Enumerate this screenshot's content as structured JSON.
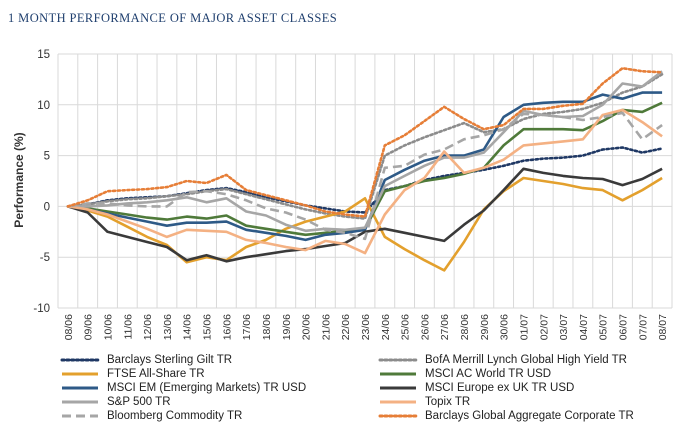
{
  "chart_data": {
    "type": "line",
    "title": "1 MONTH PERFORMANCE OF MAJOR ASSET CLASSES",
    "ylabel": "Performance (%)",
    "xlabel": "",
    "ylim": [
      -10,
      15
    ],
    "yticks": [
      -10,
      -5,
      0,
      5,
      10,
      15
    ],
    "grid": true,
    "legend_position": "bottom",
    "categories": [
      "08/06",
      "09/06",
      "10/06",
      "11/06",
      "12/06",
      "13/06",
      "14/06",
      "15/06",
      "16/06",
      "17/06",
      "18/06",
      "19/06",
      "20/06",
      "21/06",
      "22/06",
      "23/06",
      "24/06",
      "25/06",
      "26/06",
      "27/06",
      "28/06",
      "29/06",
      "30/06",
      "01/07",
      "02/07",
      "03/07",
      "04/07",
      "05/07",
      "06/07",
      "07/07",
      "08/07"
    ],
    "series": [
      {
        "name": "Barclays Sterling Gilt TR",
        "color": "#1f3864",
        "style": "dotted",
        "values": [
          0,
          0.2,
          0.6,
          0.8,
          0.9,
          1.0,
          1.3,
          1.6,
          1.8,
          1.4,
          0.9,
          0.5,
          0.1,
          -0.2,
          -0.5,
          -0.6,
          1.6,
          2.0,
          2.6,
          3.0,
          3.3,
          3.6,
          4.0,
          4.5,
          4.7,
          4.8,
          5.0,
          5.6,
          5.8,
          5.3,
          5.7
        ]
      },
      {
        "name": "BofA Merrill Lynch Global High Yield TR",
        "color": "#8c8c8c",
        "style": "dotted",
        "values": [
          0,
          0.2,
          0.5,
          0.7,
          0.8,
          1.0,
          1.2,
          1.5,
          1.7,
          1.2,
          0.7,
          0.2,
          -0.3,
          -0.7,
          -1.0,
          -1.2,
          5.0,
          6.0,
          6.8,
          7.5,
          8.2,
          7.3,
          7.6,
          8.6,
          9.1,
          9.3,
          9.6,
          10.2,
          11.2,
          11.8,
          13.0
        ]
      },
      {
        "name": "FTSE All-Share TR",
        "color": "#e3a02d",
        "style": "solid",
        "values": [
          0,
          -0.4,
          -1.0,
          -2.0,
          -3.0,
          -3.8,
          -5.5,
          -5.0,
          -5.3,
          -4.0,
          -3.3,
          -2.2,
          -1.5,
          -1.0,
          -0.5,
          0.8,
          -3.0,
          -4.2,
          -5.3,
          -6.3,
          -3.5,
          -0.3,
          1.5,
          2.8,
          2.5,
          2.2,
          1.8,
          1.6,
          0.6,
          1.6,
          2.8
        ]
      },
      {
        "name": "MSCI AC World TR USD",
        "color": "#4f7a3a",
        "style": "solid",
        "values": [
          0,
          -0.2,
          -0.5,
          -0.8,
          -1.1,
          -1.3,
          -1.0,
          -1.2,
          -0.9,
          -1.9,
          -2.2,
          -2.5,
          -2.8,
          -2.6,
          -2.4,
          -2.2,
          1.5,
          2.0,
          2.5,
          2.8,
          3.2,
          3.8,
          6.0,
          7.6,
          7.6,
          7.6,
          7.5,
          8.4,
          9.5,
          9.3,
          10.2
        ]
      },
      {
        "name": "MSCI EM (Emerging Markets) TR USD",
        "color": "#2e5a87",
        "style": "solid",
        "values": [
          0,
          -0.3,
          -0.7,
          -1.1,
          -1.5,
          -1.9,
          -1.6,
          -1.6,
          -1.5,
          -2.3,
          -2.6,
          -2.9,
          -3.3,
          -2.8,
          -2.6,
          -2.3,
          2.6,
          3.6,
          4.5,
          5.0,
          5.0,
          5.6,
          8.8,
          10.0,
          10.2,
          10.3,
          10.3,
          11.0,
          10.6,
          11.2,
          11.2
        ]
      },
      {
        "name": "MSCI Europe ex UK TR USD",
        "color": "#3a3a3a",
        "style": "solid",
        "values": [
          0,
          -0.6,
          -2.5,
          -3.0,
          -3.5,
          -4.0,
          -5.3,
          -4.8,
          -5.4,
          -5.0,
          -4.7,
          -4.4,
          -4.2,
          -3.9,
          -3.6,
          -2.5,
          -2.2,
          -2.6,
          -3.0,
          -3.4,
          -1.8,
          -0.4,
          1.6,
          3.7,
          3.3,
          3.0,
          2.8,
          2.7,
          2.1,
          2.7,
          3.7
        ]
      },
      {
        "name": "S&P 500 TR",
        "color": "#a6a6a6",
        "style": "solid",
        "values": [
          0,
          0.0,
          0.1,
          0.3,
          0.4,
          0.6,
          0.9,
          0.4,
          0.8,
          -0.5,
          -0.9,
          -1.8,
          -2.4,
          -2.2,
          -2.3,
          -2.1,
          2.0,
          3.0,
          4.0,
          4.8,
          4.8,
          5.3,
          7.3,
          9.4,
          9.0,
          8.8,
          8.9,
          10.0,
          12.1,
          11.8,
          13.3
        ]
      },
      {
        "name": "Topix TR",
        "color": "#f4b183",
        "style": "solid",
        "values": [
          0,
          -0.3,
          -0.8,
          -1.5,
          -2.2,
          -3.0,
          -2.3,
          -2.4,
          -2.5,
          -3.3,
          -3.6,
          -4.0,
          -4.3,
          -3.4,
          -3.7,
          -4.6,
          -0.8,
          1.6,
          2.8,
          5.4,
          3.3,
          3.8,
          4.6,
          6.0,
          6.2,
          6.4,
          6.6,
          9.0,
          9.5,
          8.3,
          6.9
        ]
      },
      {
        "name": "Bloomberg Commodity TR",
        "color": "#a6a6a6",
        "style": "dashed",
        "values": [
          0,
          0.3,
          0.3,
          0.1,
          0.0,
          0.0,
          1.4,
          1.5,
          1.2,
          0.6,
          -0.2,
          -0.6,
          -1.3,
          -2.3,
          -2.6,
          -3.2,
          3.8,
          4.0,
          5.1,
          5.6,
          6.6,
          7.0,
          7.6,
          9.1,
          9.0,
          8.8,
          8.5,
          8.8,
          9.2,
          6.6,
          8.0
        ]
      },
      {
        "name": "Barclays Global Aggregate Corporate TR",
        "color": "#e67e37",
        "style": "dotted",
        "values": [
          0,
          0.6,
          1.5,
          1.6,
          1.7,
          1.9,
          2.5,
          2.3,
          3.1,
          1.6,
          1.1,
          0.6,
          0.1,
          -0.5,
          -0.8,
          -1.0,
          6.0,
          7.0,
          8.4,
          9.8,
          8.6,
          7.6,
          8.0,
          9.6,
          9.6,
          9.9,
          10.1,
          12.1,
          13.6,
          13.3,
          13.2
        ]
      }
    ]
  }
}
